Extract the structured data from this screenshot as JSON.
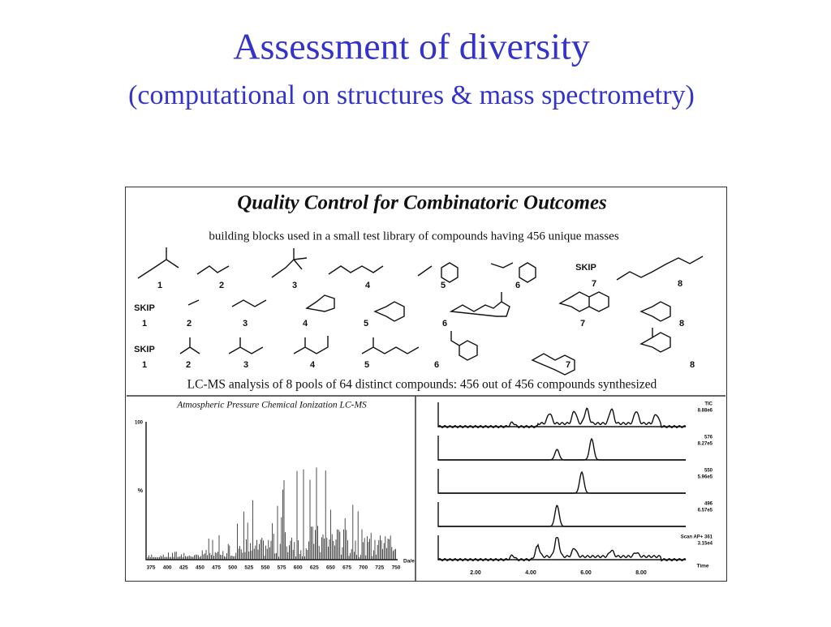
{
  "header": {
    "title": "Assessment of diversity",
    "subtitle": "(computational on structures & mass spectrometry)"
  },
  "figure": {
    "title": "Quality Control for Combinatoric Outcomes",
    "caption": "building blocks used in a small test library of compounds having 456 unique masses",
    "rows": [
      [
        "1",
        "2",
        "3",
        "4",
        "5",
        "6",
        "SKIP",
        "7",
        "8"
      ],
      [
        "SKIP",
        "1",
        "2",
        "3",
        "4",
        "5",
        "6",
        "7",
        "8"
      ],
      [
        "SKIP",
        "1",
        "2",
        "3",
        "4",
        "5",
        "6",
        "7",
        "8"
      ]
    ],
    "analysis": "LC-MS analysis of 8 pools of 64 distinct compounds:  456 out of 456 compounds synthesized",
    "ms_title": "Atmospheric Pressure Chemical Ionization LC-MS",
    "ms_ylabels": [
      "100",
      "%"
    ],
    "ms_xticks": [
      "375",
      "400",
      "425",
      "450",
      "475",
      "500",
      "525",
      "550",
      "575",
      "600",
      "625",
      "650",
      "675",
      "700",
      "725",
      "750"
    ],
    "ms_xlabel": "Da/e",
    "lc_traces": [
      {
        "label": "TIC",
        "intensity": "8.88e6"
      },
      {
        "label": "576",
        "intensity": "8.27e5"
      },
      {
        "label": "550",
        "intensity": "5.96e5"
      },
      {
        "label": "496",
        "intensity": "6.57e5"
      },
      {
        "label": "Scan AP+ 361",
        "intensity": "3.15e4"
      }
    ],
    "lc_xticks": [
      "2.00",
      "4.00",
      "6.00",
      "8.00"
    ],
    "lc_xlabel": "Time"
  }
}
